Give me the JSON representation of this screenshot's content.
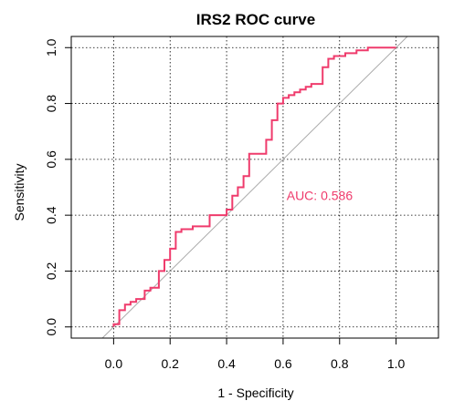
{
  "chart_data": {
    "type": "line",
    "title": "IRS2 ROC curve",
    "xlabel": "1 - Specificity",
    "ylabel": "Sensitivity",
    "xlim": [
      -0.15,
      1.15
    ],
    "ylim": [
      -0.04,
      1.04
    ],
    "x_ticks": [
      "0.0",
      "0.2",
      "0.4",
      "0.6",
      "0.8",
      "1.0"
    ],
    "y_ticks": [
      "0.0",
      "0.2",
      "0.4",
      "0.6",
      "0.8",
      "1.0"
    ],
    "grid": true,
    "grid_style": "dotted",
    "reference_line": {
      "from": [
        0,
        0
      ],
      "to": [
        1,
        1
      ],
      "color": "#aaaaaa"
    },
    "annotation": {
      "text": "AUC: 0.586",
      "x": 0.6,
      "y": 0.47,
      "color": "#ef3b6c"
    },
    "series": [
      {
        "color": "#ef3b6c",
        "x": [
          0.0,
          0.0,
          0.02,
          0.02,
          0.04,
          0.04,
          0.06,
          0.06,
          0.08,
          0.08,
          0.11,
          0.11,
          0.13,
          0.13,
          0.16,
          0.16,
          0.18,
          0.18,
          0.2,
          0.2,
          0.22,
          0.22,
          0.24,
          0.24,
          0.26,
          0.26,
          0.28,
          0.28,
          0.32,
          0.32,
          0.34,
          0.34,
          0.38,
          0.38,
          0.4,
          0.4,
          0.42,
          0.42,
          0.44,
          0.44,
          0.46,
          0.46,
          0.48,
          0.48,
          0.5,
          0.5,
          0.54,
          0.54,
          0.56,
          0.56,
          0.58,
          0.58,
          0.6,
          0.6,
          0.62,
          0.62,
          0.64,
          0.64,
          0.66,
          0.66,
          0.68,
          0.68,
          0.7,
          0.7,
          0.74,
          0.74,
          0.76,
          0.76,
          0.78,
          0.78,
          0.8,
          0.8,
          0.82,
          0.82,
          0.86,
          0.86,
          0.88,
          0.88,
          0.9,
          0.9,
          0.92,
          0.92,
          1.0
        ],
        "y": [
          0.0,
          0.01,
          0.01,
          0.06,
          0.06,
          0.08,
          0.08,
          0.09,
          0.09,
          0.1,
          0.1,
          0.13,
          0.13,
          0.14,
          0.14,
          0.2,
          0.2,
          0.24,
          0.24,
          0.28,
          0.28,
          0.34,
          0.34,
          0.35,
          0.35,
          0.35,
          0.35,
          0.36,
          0.36,
          0.36,
          0.36,
          0.4,
          0.4,
          0.4,
          0.4,
          0.42,
          0.42,
          0.47,
          0.47,
          0.5,
          0.5,
          0.54,
          0.54,
          0.62,
          0.62,
          0.62,
          0.62,
          0.67,
          0.67,
          0.74,
          0.74,
          0.8,
          0.8,
          0.82,
          0.82,
          0.83,
          0.83,
          0.84,
          0.84,
          0.85,
          0.85,
          0.86,
          0.86,
          0.87,
          0.87,
          0.93,
          0.93,
          0.96,
          0.96,
          0.97,
          0.97,
          0.97,
          0.97,
          0.98,
          0.98,
          0.99,
          0.99,
          0.99,
          0.99,
          1.0,
          1.0,
          1.0,
          1.0
        ]
      }
    ]
  }
}
